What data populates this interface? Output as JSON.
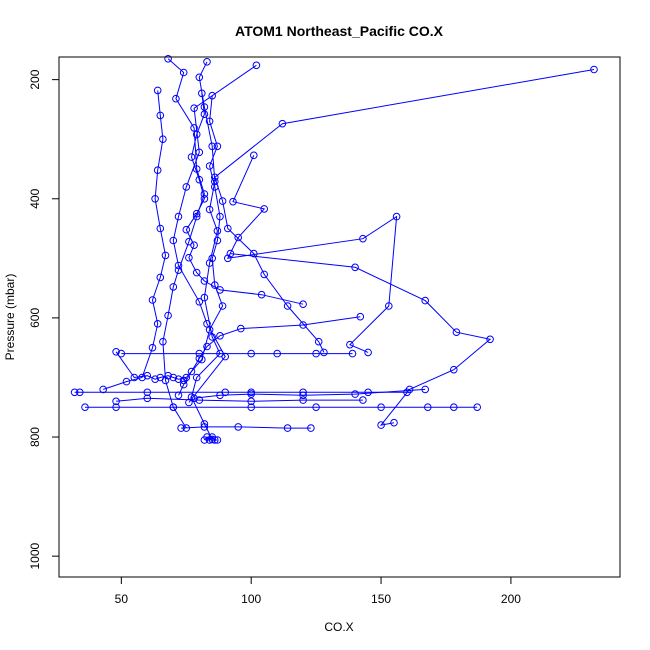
{
  "chart_data": {
    "type": "line",
    "title": "ATOM1 Northeast_Pacific CO.X",
    "xlabel": "CO.X",
    "ylabel": "Pressure (mbar)",
    "xlim": [
      26,
      242
    ],
    "ylim": [
      1035,
      162
    ],
    "y_reversed": true,
    "xticks": [
      50,
      100,
      150,
      200
    ],
    "yticks": [
      200,
      400,
      600,
      800,
      1000
    ],
    "grid": false,
    "legend": "none",
    "color": "#0000ff",
    "marker": "open-circle",
    "series": [
      {
        "values": [
          [
            68,
            165
          ],
          [
            74,
            188
          ],
          [
            71,
            232
          ],
          [
            78,
            281
          ],
          [
            79,
            350
          ],
          [
            82,
            392
          ],
          [
            79,
            430
          ],
          [
            76,
            472
          ],
          [
            72,
            520
          ],
          [
            70,
            548
          ],
          [
            68,
            596
          ],
          [
            66,
            640
          ],
          [
            67,
            705
          ],
          [
            70,
            750
          ],
          [
            75,
            785
          ]
        ]
      },
      {
        "values": [
          [
            83,
            170
          ],
          [
            80,
            196
          ],
          [
            82,
            246
          ],
          [
            85,
            312
          ],
          [
            86,
            371
          ],
          [
            84,
            418
          ],
          [
            87,
            454
          ],
          [
            84,
            508
          ],
          [
            82,
            566
          ],
          [
            85,
            632
          ],
          [
            88,
            660
          ],
          [
            79,
            700
          ],
          [
            77,
            733
          ],
          [
            82,
            778
          ],
          [
            85,
            804
          ]
        ]
      },
      {
        "values": [
          [
            102,
            176
          ],
          [
            78,
            248
          ],
          [
            80,
            322
          ],
          [
            75,
            380
          ],
          [
            72,
            430
          ],
          [
            70,
            470
          ],
          [
            72,
            512
          ],
          [
            80,
            573
          ],
          [
            83,
            610
          ],
          [
            90,
            665
          ],
          [
            76,
            742
          ]
        ]
      },
      {
        "values": [
          [
            232,
            183
          ],
          [
            112,
            274
          ],
          [
            86,
            364
          ],
          [
            89,
            404
          ],
          [
            91,
            450
          ],
          [
            101,
            492
          ],
          [
            105,
            527
          ],
          [
            114,
            580
          ],
          [
            126,
            640
          ],
          [
            128,
            658
          ]
        ]
      },
      {
        "values": [
          [
            101,
            327
          ],
          [
            93,
            405
          ],
          [
            105,
            417
          ],
          [
            95,
            465
          ],
          [
            91,
            500
          ],
          [
            143,
            467
          ],
          [
            156,
            430
          ],
          [
            153,
            580
          ],
          [
            138,
            645
          ],
          [
            145,
            658
          ]
        ]
      },
      {
        "values": [
          [
            92,
            492
          ],
          [
            140,
            515
          ],
          [
            167,
            571
          ],
          [
            179,
            624
          ],
          [
            192,
            636
          ],
          [
            178,
            687
          ],
          [
            161,
            720
          ],
          [
            150,
            780
          ],
          [
            155,
            776
          ]
        ]
      },
      {
        "values": [
          [
            48,
            657
          ],
          [
            55,
            700
          ],
          [
            60,
            697
          ],
          [
            63,
            703
          ],
          [
            65,
            700
          ],
          [
            68,
            697
          ],
          [
            70,
            700
          ],
          [
            72,
            703
          ],
          [
            75,
            700
          ]
        ]
      },
      {
        "values": [
          [
            32,
            725
          ],
          [
            34,
            725
          ],
          [
            60,
            725
          ],
          [
            90,
            725
          ],
          [
            100,
            725
          ],
          [
            120,
            725
          ],
          [
            145,
            725
          ],
          [
            160,
            725
          ]
        ]
      },
      {
        "values": [
          [
            36,
            750
          ],
          [
            48,
            750
          ],
          [
            70,
            750
          ],
          [
            100,
            750
          ],
          [
            125,
            750
          ],
          [
            150,
            750
          ],
          [
            168,
            750
          ],
          [
            178,
            750
          ],
          [
            187,
            750
          ]
        ]
      },
      {
        "values": [
          [
            48,
            740
          ],
          [
            60,
            735
          ],
          [
            80,
            738
          ],
          [
            100,
            740
          ],
          [
            120,
            738
          ],
          [
            143,
            738
          ]
        ]
      },
      {
        "values": [
          [
            50,
            660
          ],
          [
            80,
            660
          ],
          [
            100,
            660
          ],
          [
            110,
            660
          ],
          [
            125,
            660
          ],
          [
            139,
            660
          ]
        ]
      },
      {
        "values": [
          [
            73,
            785
          ],
          [
            82,
            783
          ],
          [
            95,
            783
          ],
          [
            114,
            785
          ],
          [
            123,
            785
          ]
        ]
      },
      {
        "values": [
          [
            82,
            805
          ],
          [
            83,
            800
          ],
          [
            84,
            805
          ],
          [
            85,
            800
          ],
          [
            86,
            805
          ],
          [
            87,
            805
          ]
        ]
      },
      {
        "values": [
          [
            43,
            720
          ],
          [
            52,
            707
          ],
          [
            58,
            700
          ],
          [
            62,
            650
          ],
          [
            64,
            610
          ],
          [
            62,
            570
          ],
          [
            65,
            532
          ],
          [
            67,
            495
          ],
          [
            65,
            450
          ],
          [
            63,
            400
          ],
          [
            64,
            352
          ],
          [
            66,
            300
          ],
          [
            65,
            260
          ],
          [
            64,
            218
          ]
        ]
      },
      {
        "values": [
          [
            74,
            705
          ],
          [
            81,
            670
          ],
          [
            84,
            620
          ],
          [
            89,
            580
          ],
          [
            86,
            545
          ],
          [
            85,
            500
          ],
          [
            87,
            470
          ],
          [
            88,
            430
          ],
          [
            86,
            380
          ],
          [
            84,
            345
          ],
          [
            87,
            312
          ],
          [
            84,
            270
          ],
          [
            85,
            227
          ]
        ]
      },
      {
        "values": [
          [
            142,
            598
          ],
          [
            120,
            612
          ],
          [
            96,
            618
          ],
          [
            88,
            630
          ],
          [
            83,
            648
          ],
          [
            80,
            668
          ],
          [
            77,
            690
          ],
          [
            74,
            712
          ],
          [
            72,
            730
          ]
        ]
      },
      {
        "values": [
          [
            120,
            577
          ],
          [
            104,
            561
          ],
          [
            88,
            553
          ],
          [
            82,
            538
          ],
          [
            79,
            524
          ],
          [
            76,
            499
          ],
          [
            78,
            478
          ],
          [
            75,
            452
          ],
          [
            79,
            425
          ],
          [
            82,
            400
          ],
          [
            80,
            368
          ],
          [
            77,
            330
          ],
          [
            79,
            292
          ],
          [
            82,
            258
          ],
          [
            81,
            223
          ]
        ]
      },
      {
        "values": [
          [
            167,
            720
          ],
          [
            140,
            728
          ],
          [
            120,
            730
          ],
          [
            100,
            728
          ],
          [
            88,
            730
          ],
          [
            78,
            735
          ]
        ]
      }
    ]
  }
}
